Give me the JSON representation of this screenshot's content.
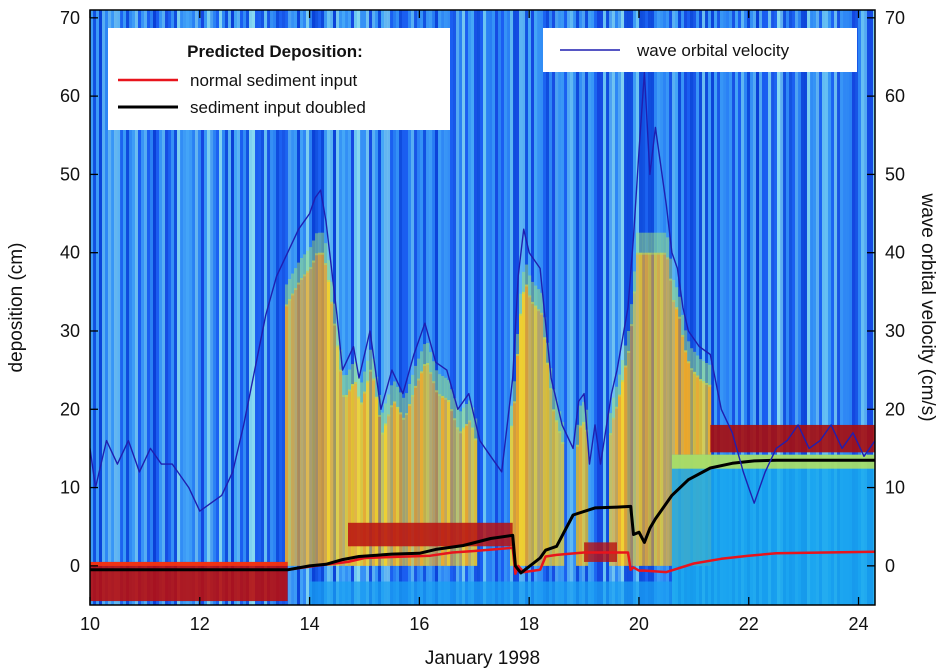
{
  "chart_data": {
    "type": "line",
    "background": "heatmap",
    "xlabel": "January 1998",
    "ylabel_left": "deposition (cm)",
    "ylabel_right": "wave orbital velocity (cm/s)",
    "xlim": [
      10,
      24.3
    ],
    "ylim": [
      -5,
      71
    ],
    "x_ticks": [
      10,
      12,
      14,
      16,
      18,
      20,
      22,
      24
    ],
    "y_ticks": [
      0,
      10,
      20,
      30,
      40,
      50,
      60,
      70
    ],
    "y_ticks_right": [
      0,
      10,
      20,
      30,
      40,
      50,
      60,
      70
    ],
    "legend_left": {
      "heading": "Predicted Deposition:",
      "entries": [
        "normal sediment input",
        "sediment input doubled"
      ],
      "placement": "top-left"
    },
    "legend_right": {
      "entries": [
        "wave orbital velocity"
      ],
      "placement": "top-right"
    },
    "series": [
      {
        "name": "normal sediment input",
        "axis": "left",
        "color": "#e8141c",
        "x": [
          10,
          13.6,
          14.1,
          14.7,
          15.0,
          16.2,
          16.6,
          17.0,
          17.7,
          17.75,
          17.8,
          17.9,
          18.2,
          18.3,
          18.5,
          19.0,
          19.8,
          19.85,
          19.9,
          20.0,
          20.1,
          20.5,
          21.0,
          21.5,
          22.0,
          22.5,
          24.3
        ],
        "values": [
          -0.5,
          -0.5,
          0.0,
          0.5,
          1.0,
          1.3,
          1.7,
          1.9,
          2.3,
          -1.0,
          0.0,
          -0.8,
          -0.5,
          1.2,
          1.4,
          1.7,
          1.7,
          -0.5,
          -0.2,
          -0.6,
          -0.6,
          -0.8,
          0.3,
          0.9,
          1.3,
          1.6,
          1.8
        ]
      },
      {
        "name": "sediment input doubled",
        "axis": "left",
        "color": "#000000",
        "x": [
          10,
          13.6,
          14.0,
          14.3,
          14.6,
          14.9,
          15.5,
          16.0,
          16.3,
          16.8,
          17.3,
          17.7,
          17.75,
          17.85,
          18.2,
          18.3,
          18.5,
          18.8,
          19.2,
          19.6,
          19.85,
          19.9,
          20.0,
          20.1,
          20.2,
          20.3,
          20.6,
          20.9,
          21.3,
          21.7,
          22.1,
          22.5,
          23.0,
          24.3
        ],
        "values": [
          -0.5,
          -0.5,
          0.0,
          0.2,
          0.8,
          1.2,
          1.5,
          1.6,
          2.1,
          2.6,
          3.5,
          3.9,
          0.0,
          -0.9,
          1.0,
          2.0,
          2.5,
          6.5,
          7.4,
          7.5,
          7.6,
          4.0,
          4.3,
          3.0,
          4.8,
          6.0,
          9.0,
          11.0,
          12.5,
          13.1,
          13.4,
          13.5,
          13.5,
          13.5
        ]
      },
      {
        "name": "wave orbital velocity",
        "axis": "right",
        "color": "#1f1fb0",
        "x": [
          10.0,
          10.1,
          10.3,
          10.5,
          10.7,
          10.9,
          11.1,
          11.3,
          11.5,
          11.8,
          12.0,
          12.2,
          12.4,
          12.6,
          12.8,
          13.0,
          13.2,
          13.4,
          13.6,
          13.8,
          14.0,
          14.1,
          14.2,
          14.3,
          14.4,
          14.5,
          14.6,
          14.8,
          14.9,
          15.1,
          15.3,
          15.5,
          15.7,
          15.9,
          16.1,
          16.3,
          16.5,
          16.7,
          16.9,
          17.1,
          17.3,
          17.5,
          17.7,
          17.8,
          17.9,
          18.0,
          18.2,
          18.4,
          18.6,
          18.8,
          18.9,
          19.0,
          19.1,
          19.2,
          19.3,
          19.5,
          19.6,
          19.8,
          19.9,
          20.0,
          20.1,
          20.2,
          20.3,
          20.5,
          20.6,
          20.7,
          20.8,
          20.9,
          21.1,
          21.3,
          21.5,
          21.7,
          21.9,
          22.0,
          22.1,
          22.3,
          22.5,
          22.7,
          22.9,
          23.1,
          23.3,
          23.5,
          23.7,
          23.9,
          24.1,
          24.3
        ],
        "values": [
          15,
          10,
          16,
          13,
          16,
          12,
          15,
          13,
          13,
          10,
          7,
          8,
          9,
          12,
          18,
          25,
          32,
          37,
          40,
          43,
          45,
          47,
          48,
          44,
          38,
          32,
          25,
          28,
          24,
          30,
          20,
          25,
          22,
          27,
          31,
          26,
          25,
          20,
          22,
          16,
          14,
          12,
          24,
          37,
          43,
          40,
          38,
          24,
          18,
          15,
          21,
          22,
          13,
          18,
          13,
          22,
          25,
          33,
          42,
          53,
          63,
          50,
          56,
          46,
          40,
          38,
          33,
          30,
          28,
          27,
          20,
          17,
          12,
          10,
          8,
          12,
          15,
          16,
          18,
          15,
          16,
          18,
          15,
          17,
          14,
          16
        ]
      }
    ]
  }
}
